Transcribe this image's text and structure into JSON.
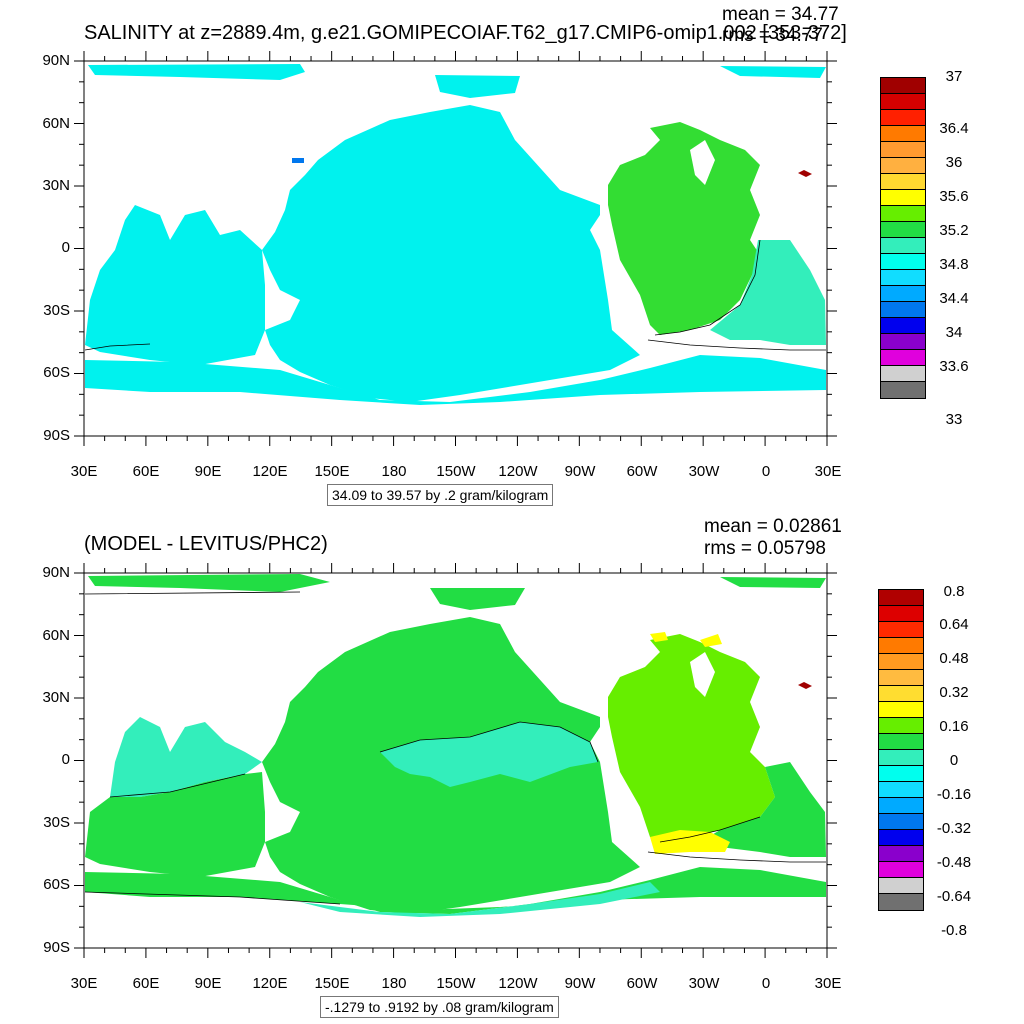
{
  "top": {
    "title": "SALINITY at z=2889.4m, g.e21.GOMIPECOIAF.T62_g17.CMIP6-omip1.002 [353-372]",
    "mean": "mean = 34.77",
    "rms": "rms = 34.77",
    "range_label": "34.09 to 39.57 by .2 gram/kilogram",
    "colorbar_labels": [
      "37",
      "36.4",
      "36",
      "35.6",
      "35.2",
      "34.8",
      "34.4",
      "34",
      "33.6",
      "33"
    ],
    "colorbar_colors": [
      "#a00000",
      "#d40000",
      "#ff2000",
      "#ff7a00",
      "#ff9a30",
      "#ffb040",
      "#ffd830",
      "#ffff00",
      "#66ee00",
      "#22dd44",
      "#33eebb",
      "#00ffee",
      "#11ddff",
      "#00aaff",
      "#0077ee",
      "#0000ee",
      "#8a00cc",
      "#e000dd",
      "#d0d0d0",
      "#707070"
    ],
    "fields": {
      "main": "#00f2ee",
      "atlantic": "#33dd33",
      "southatl": "#33eebb",
      "med": "#a00000",
      "blue": "#0077ee"
    }
  },
  "bottom": {
    "title": "(MODEL - LEVITUS/PHC2)",
    "mean": "mean = 0.02861",
    "rms": "rms = 0.05798",
    "range_label": "-.1279 to .9192 by .08 gram/kilogram",
    "colorbar_labels": [
      "0.8",
      "0.64",
      "0.48",
      "0.32",
      "0.16",
      "0",
      "-0.16",
      "-0.32",
      "-0.48",
      "-0.64",
      "-0.8"
    ],
    "colorbar_colors": [
      "#b00000",
      "#dd0000",
      "#ff2a00",
      "#ff7a00",
      "#ff9a20",
      "#ffbb40",
      "#ffdd30",
      "#ffff00",
      "#66ee00",
      "#22dd44",
      "#33eebb",
      "#00ffee",
      "#11ddff",
      "#00aaff",
      "#0077ee",
      "#0000ee",
      "#8a00cc",
      "#e000dd",
      "#d0d0d0",
      "#707070"
    ],
    "fields": {
      "main": "#22dd44",
      "cyan": "#33eebb",
      "atlantic": "#66ee00",
      "yellow": "#ffff00",
      "med": "#a00000"
    }
  },
  "axes": {
    "lat_labels": [
      "90N",
      "60N",
      "30N",
      "0",
      "30S",
      "60S",
      "90S"
    ],
    "lon_labels": [
      "30E",
      "60E",
      "90E",
      "120E",
      "150E",
      "180",
      "150W",
      "120W",
      "90W",
      "60W",
      "30W",
      "0",
      "30E"
    ]
  }
}
